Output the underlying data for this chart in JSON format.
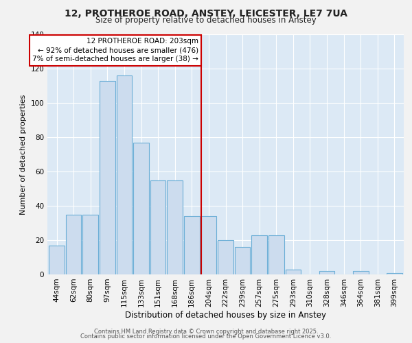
{
  "title_line1": "12, PROTHEROE ROAD, ANSTEY, LEICESTER, LE7 7UA",
  "title_line2": "Size of property relative to detached houses in Anstey",
  "xlabel": "Distribution of detached houses by size in Anstey",
  "ylabel": "Number of detached properties",
  "footer_line1": "Contains HM Land Registry data © Crown copyright and database right 2025.",
  "footer_line2": "Contains public sector information licensed under the Open Government Licence v3.0.",
  "annotation_title": "12 PROTHEROE ROAD: 203sqm",
  "annotation_line1": "← 92% of detached houses are smaller (476)",
  "annotation_line2": "7% of semi-detached houses are larger (38) →",
  "bar_color": "#ccdcee",
  "bar_edge_color": "#6baed6",
  "vline_color": "#cc0000",
  "annotation_box_edge": "#cc0000",
  "annotation_box_fill": "white",
  "background_color": "#dce9f5",
  "fig_background": "#f2f2f2",
  "categories": [
    "44sqm",
    "62sqm",
    "80sqm",
    "97sqm",
    "115sqm",
    "133sqm",
    "151sqm",
    "168sqm",
    "186sqm",
    "204sqm",
    "222sqm",
    "239sqm",
    "257sqm",
    "275sqm",
    "293sqm",
    "310sqm",
    "328sqm",
    "346sqm",
    "364sqm",
    "381sqm",
    "399sqm"
  ],
  "values": [
    17,
    35,
    35,
    113,
    116,
    77,
    55,
    55,
    34,
    34,
    20,
    16,
    23,
    23,
    3,
    0,
    2,
    0,
    2,
    0,
    1
  ],
  "ylim": [
    0,
    140
  ],
  "yticks": [
    0,
    20,
    40,
    60,
    80,
    100,
    120,
    140
  ],
  "vline_x_index": 9.0
}
